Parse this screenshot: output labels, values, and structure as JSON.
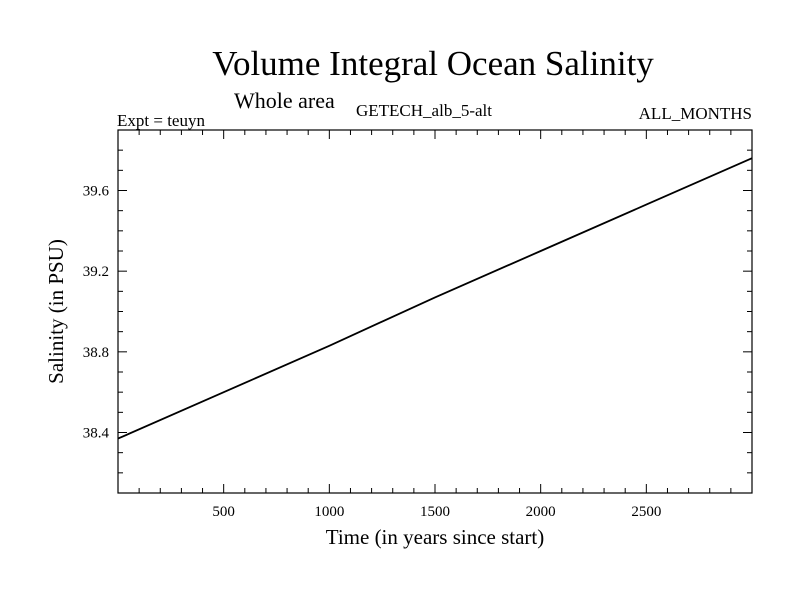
{
  "header": {
    "title": "Volume Integral Ocean Salinity",
    "subtitle": "Whole area",
    "experiment": "Expt = teuyn",
    "run_name": "GETECH_alb_5-alt",
    "period": "ALL_MONTHS"
  },
  "chart_data": {
    "type": "line",
    "title": "Volume Integral Ocean Salinity",
    "xlabel": "Time (in years since start)",
    "ylabel": "Salinity (in PSU)",
    "xlim": [
      0,
      3000
    ],
    "ylim": [
      38.1,
      39.9
    ],
    "xticks": [
      500,
      1000,
      1500,
      2000,
      2500
    ],
    "yticks": [
      38.4,
      38.8,
      39.2,
      39.6
    ],
    "xtick_labels": [
      "500",
      "1000",
      "1500",
      "2000",
      "2500"
    ],
    "ytick_labels": [
      "38.4",
      "38.8",
      "39.2",
      "39.6"
    ],
    "grid": false,
    "series": [
      {
        "x": [
          0,
          500,
          1000,
          1500,
          2000,
          2500,
          3000
        ],
        "y": [
          38.37,
          38.6,
          38.83,
          39.07,
          39.3,
          39.53,
          39.76
        ]
      }
    ],
    "line_color": "#000000"
  }
}
